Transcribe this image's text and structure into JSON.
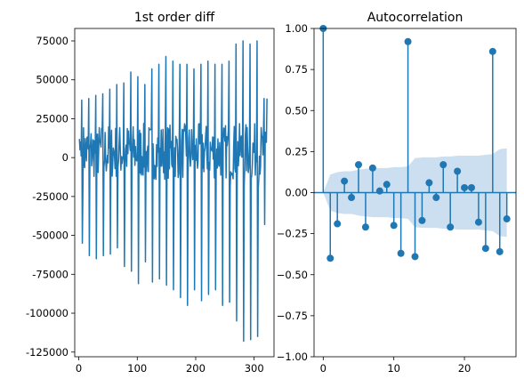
{
  "chart_data": [
    {
      "type": "line",
      "title": "1st order diff",
      "xlabel": "",
      "ylabel": "",
      "xlim": [
        -7,
        334
      ],
      "ylim": [
        -128000,
        83000
      ],
      "xticks": [
        0,
        100,
        200,
        300
      ],
      "yticks": [
        -125000,
        -100000,
        -75000,
        -50000,
        -25000,
        0,
        25000,
        50000,
        75000
      ],
      "grid": false,
      "series_color": "#1f77b4",
      "series": [
        {
          "x_range": [
            1,
            322
          ],
          "period": 12,
          "cycles": [
            {
              "start": 1,
              "peak": 37000,
              "trough": -55000
            },
            {
              "start": 13,
              "peak": 38000,
              "trough": -63000
            },
            {
              "start": 25,
              "peak": 40000,
              "trough": -65000
            },
            {
              "start": 37,
              "peak": 41000,
              "trough": -63000
            },
            {
              "start": 49,
              "peak": 44000,
              "trough": -62000
            },
            {
              "start": 61,
              "peak": 47000,
              "trough": -58000
            },
            {
              "start": 73,
              "peak": 48000,
              "trough": -70000
            },
            {
              "start": 85,
              "peak": 55000,
              "trough": -73000
            },
            {
              "start": 97,
              "peak": 52000,
              "trough": -81000
            },
            {
              "start": 109,
              "peak": 47000,
              "trough": -67000
            },
            {
              "start": 121,
              "peak": 57000,
              "trough": -80000
            },
            {
              "start": 133,
              "peak": 60000,
              "trough": -78000
            },
            {
              "start": 145,
              "peak": 65000,
              "trough": -82000
            },
            {
              "start": 157,
              "peak": 62000,
              "trough": -85000
            },
            {
              "start": 169,
              "peak": 60000,
              "trough": -90000
            },
            {
              "start": 181,
              "peak": 60000,
              "trough": -95000
            },
            {
              "start": 193,
              "peak": 57000,
              "trough": -85000
            },
            {
              "start": 205,
              "peak": 60000,
              "trough": -92000
            },
            {
              "start": 217,
              "peak": 62000,
              "trough": -88000
            },
            {
              "start": 229,
              "peak": 60000,
              "trough": -85000
            },
            {
              "start": 241,
              "peak": 60000,
              "trough": -95000
            },
            {
              "start": 253,
              "peak": 62000,
              "trough": -93000
            },
            {
              "start": 265,
              "peak": 73000,
              "trough": -105000
            },
            {
              "start": 277,
              "peak": 75000,
              "trough": -118000
            },
            {
              "start": 289,
              "peak": 73000,
              "trough": -117000
            },
            {
              "start": 301,
              "peak": 75000,
              "trough": -115000
            },
            {
              "start": 313,
              "peak": 38000,
              "trough": -43000
            }
          ],
          "minor_band": [
            -20000,
            22000
          ],
          "first_values": [
            12000,
            5000,
            10000,
            1000
          ]
        }
      ]
    },
    {
      "type": "scatter",
      "subtype": "stem",
      "title": "Autocorrelation",
      "xlabel": "",
      "ylabel": "",
      "xlim": [
        -1.3,
        27.3
      ],
      "ylim": [
        -1.0,
        1.0
      ],
      "xticks": [
        0,
        10,
        20
      ],
      "yticks": [
        -1.0,
        -0.75,
        -0.5,
        -0.25,
        0.0,
        0.25,
        0.5,
        0.75,
        1.0
      ],
      "ytick_labels": [
        "−1.00",
        "−0.75",
        "−0.50",
        "−0.25",
        "0.00",
        "0.25",
        "0.50",
        "0.75",
        "1.00"
      ],
      "grid": false,
      "marker_color": "#1f77b4",
      "band_color": "#c6dbef",
      "lags": [
        0,
        1,
        2,
        3,
        4,
        5,
        6,
        7,
        8,
        9,
        10,
        11,
        12,
        13,
        14,
        15,
        16,
        17,
        18,
        19,
        20,
        21,
        22,
        23,
        24,
        25,
        26
      ],
      "values": [
        1.0,
        -0.4,
        -0.19,
        0.07,
        -0.03,
        0.17,
        -0.21,
        0.15,
        0.01,
        0.05,
        -0.2,
        -0.37,
        0.92,
        -0.39,
        -0.17,
        0.06,
        -0.03,
        0.17,
        -0.21,
        0.13,
        0.03,
        0.03,
        -0.18,
        -0.34,
        0.86,
        -0.36,
        -0.16
      ],
      "confidence_band": [
        0,
        0.11,
        0.125,
        0.13,
        0.13,
        0.14,
        0.145,
        0.15,
        0.15,
        0.15,
        0.155,
        0.155,
        0.16,
        0.21,
        0.215,
        0.215,
        0.215,
        0.22,
        0.22,
        0.225,
        0.225,
        0.225,
        0.225,
        0.23,
        0.235,
        0.265,
        0.27
      ]
    }
  ]
}
